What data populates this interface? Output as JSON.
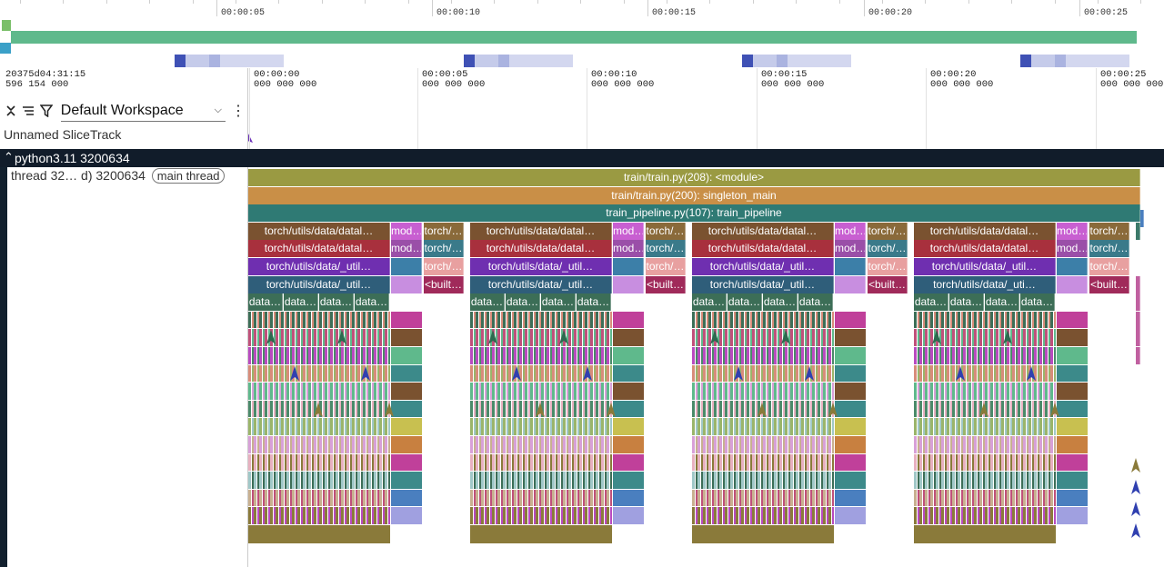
{
  "overview": {
    "ticks": [
      "00:00:05",
      "00:00:10",
      "00:00:15",
      "00:00:20",
      "00:00:25"
    ],
    "bar_color": "#5fb98c",
    "activity_color": "#3f51b5"
  },
  "timeline": {
    "origin_line1": "20375d04:31:15",
    "origin_line2": "596 154 000",
    "ticks": [
      {
        "t": "00:00:00",
        "ns": "000 000 000"
      },
      {
        "t": "00:00:05",
        "ns": "000 000 000"
      },
      {
        "t": "00:00:10",
        "ns": "000 000 000"
      },
      {
        "t": "00:00:15",
        "ns": "000 000 000"
      },
      {
        "t": "00:00:20",
        "ns": "000 000 000"
      },
      {
        "t": "00:00:25",
        "ns": "000 000 000"
      }
    ]
  },
  "toolbar": {
    "collapse_icon": "collapse-icon",
    "sort_icon": "sort-icon",
    "filter_icon": "filter-icon",
    "workspace": "Default Workspace",
    "menu_icon": "kebab-menu-icon"
  },
  "tracks": {
    "unnamed": "Unnamed SliceTrack",
    "process": "python3.11 3200634",
    "thread": "thread 32… d) 3200634",
    "thread_badge": "main thread"
  },
  "flame": {
    "top_slices": [
      {
        "label": "train/train.py(208): <module>",
        "color": "#9a9a42"
      },
      {
        "label": "train/train.py(200): singleton_main",
        "color": "#c98f47"
      },
      {
        "label": "train_pipeline.py(107): train_pipeline",
        "color": "#2f7a74"
      }
    ],
    "group_labels": {
      "row3": "torch/utils/data/datal…",
      "row4": "torch/utils/data/datal…",
      "row5": "torch/utils/data/_util…",
      "row6": "torch/utils/data/_util…",
      "row7": "data…",
      "mod": "mod…",
      "torch_short": "torch/…",
      "builtin": "<built…"
    },
    "row6_alt": "torch/utils/data/_uti…"
  }
}
